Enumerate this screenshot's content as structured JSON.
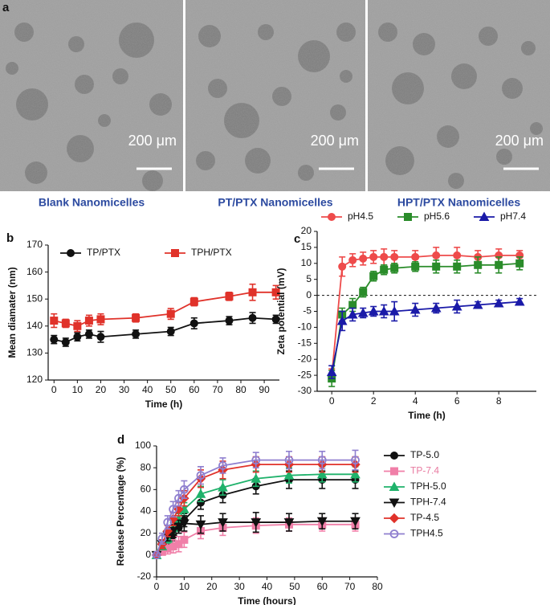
{
  "panel_labels": [
    "a",
    "b",
    "c",
    "d"
  ],
  "micrographs": [
    {
      "scale_label": "200 μm",
      "caption": "Blank Nanomicelles"
    },
    {
      "scale_label": "200 μm",
      "caption": "PT/PTX Nanomicelles"
    },
    {
      "scale_label": "200 μm",
      "caption": "HPT/PTX Nanomicelles"
    }
  ],
  "chart_data": [
    {
      "type": "line",
      "xlabel": "Time (h)",
      "ylabel": "Mean diamater (nm)",
      "legend": "upper left",
      "x": [
        0,
        5,
        10,
        15,
        20,
        35,
        50,
        60,
        75,
        85,
        95
      ],
      "xlim": [
        -2.5,
        96.5
      ],
      "xticks": [
        0,
        10,
        20,
        30,
        40,
        50,
        60,
        70,
        80,
        90
      ],
      "ylim": [
        120,
        170
      ],
      "yticks": [
        120,
        130,
        140,
        150,
        160,
        170
      ],
      "series": [
        {
          "name": "TP/PTX",
          "color": "#111111",
          "marker": "circle",
          "values": [
            135,
            134,
            136,
            137,
            136,
            137,
            138,
            141,
            142,
            143,
            142.5
          ],
          "errors": [
            1.5,
            1.5,
            1.5,
            1.5,
            2,
            1.5,
            1.5,
            2,
            1.5,
            2,
            1.5
          ]
        },
        {
          "name": "TPH/PTX",
          "color": "#e0322a",
          "marker": "square",
          "values": [
            142,
            141,
            140,
            142,
            142.5,
            143,
            144.5,
            149,
            151,
            152.5,
            152.5
          ],
          "errors": [
            2.5,
            1.5,
            2,
            2,
            2,
            1.5,
            2,
            1.5,
            1.5,
            3,
            2.5
          ]
        }
      ]
    },
    {
      "type": "line",
      "xlabel": "Time (h)",
      "ylabel": "Zeta potential (mV)",
      "legend": "top",
      "x": [
        0,
        0.5,
        1,
        1.5,
        2,
        2.5,
        3,
        4,
        5,
        6,
        7,
        8,
        9
      ],
      "xlim": [
        -0.7,
        9.8
      ],
      "xticks": [
        0,
        2,
        4,
        6,
        8
      ],
      "ylim": [
        -30,
        20
      ],
      "yticks": [
        -30,
        -25,
        -20,
        -15,
        -10,
        -5,
        0,
        5,
        10,
        15,
        20
      ],
      "hline": 0,
      "series": [
        {
          "name": "pH4.5",
          "color": "#ee4b4b",
          "marker": "circle",
          "values": [
            -25,
            9,
            11,
            11.5,
            12,
            12,
            12,
            12,
            12.5,
            12.5,
            12,
            12.5,
            12.5
          ],
          "errors": [
            2,
            3,
            2,
            2,
            2,
            2.5,
            2,
            2,
            2.5,
            2.5,
            2,
            2,
            1.5
          ]
        },
        {
          "name": "pH5.6",
          "color": "#2a8c2a",
          "marker": "square",
          "values": [
            -26,
            -6,
            -3,
            1,
            6,
            8,
            8.5,
            9,
            9,
            9,
            9.5,
            9.5,
            10
          ],
          "errors": [
            2.5,
            2,
            2,
            1.5,
            1.5,
            1.5,
            1.5,
            1.5,
            2,
            2,
            2.5,
            2.5,
            2
          ]
        },
        {
          "name": "pH7.4",
          "color": "#1a1aa8",
          "marker": "triangle",
          "values": [
            -24,
            -8,
            -6,
            -5.5,
            -5,
            -5,
            -5,
            -4.5,
            -4,
            -3.5,
            -3,
            -2.5,
            -2
          ],
          "errors": [
            2,
            3,
            2,
            1.5,
            1.5,
            2,
            3,
            2,
            1.5,
            2,
            1,
            1,
            1
          ]
        }
      ]
    },
    {
      "type": "line",
      "xlabel": "Time (hours)",
      "ylabel": "Release Percentage (%)",
      "legend": "right",
      "x": [
        0,
        2,
        4,
        6,
        8,
        10,
        16,
        24,
        36,
        48,
        60,
        72
      ],
      "xlim": [
        0,
        80
      ],
      "xticks": [
        0,
        10,
        20,
        30,
        40,
        50,
        60,
        70,
        80
      ],
      "ylim": [
        -20,
        100
      ],
      "yticks": [
        -20,
        0,
        20,
        40,
        60,
        80,
        100
      ],
      "series": [
        {
          "name": "TP-5.0",
          "color": "#111111",
          "marker": "circle",
          "values": [
            0,
            5,
            10,
            18,
            25,
            32,
            48,
            55,
            63,
            69,
            69,
            69
          ],
          "errors": [
            1,
            3,
            4,
            5,
            5,
            6,
            6,
            7,
            7,
            8,
            8,
            8
          ]
        },
        {
          "name": "TP-7.4",
          "color": "#f07fa8",
          "label_color": "#e87aa0",
          "marker": "square",
          "values": [
            0,
            3,
            6,
            8,
            10,
            14,
            22,
            25,
            27,
            28,
            28,
            28
          ],
          "errors": [
            1,
            3,
            5,
            6,
            7,
            7,
            7,
            7,
            7,
            6,
            6,
            6
          ]
        },
        {
          "name": "TPH-5.0",
          "color": "#1fb26b",
          "marker": "triangle",
          "values": [
            0,
            8,
            15,
            25,
            33,
            42,
            56,
            62,
            70,
            73,
            74,
            74
          ],
          "errors": [
            1,
            3,
            4,
            5,
            5,
            6,
            7,
            7,
            7,
            7,
            7,
            7
          ]
        },
        {
          "name": "TPH-7.4",
          "color": "#111111",
          "marker": "triangle-down",
          "values": [
            0,
            10,
            18,
            22,
            26,
            29,
            28,
            30,
            30,
            30,
            31,
            31
          ],
          "errors": [
            1,
            4,
            5,
            6,
            6,
            7,
            8,
            8,
            9,
            8,
            7,
            7
          ]
        },
        {
          "name": "TP-4.5",
          "color": "#e0322a",
          "marker": "diamond",
          "values": [
            0,
            10,
            22,
            33,
            42,
            52,
            70,
            78,
            83,
            83,
            83,
            83
          ],
          "errors": [
            1,
            4,
            5,
            6,
            6,
            7,
            8,
            8,
            7,
            7,
            7,
            7
          ]
        },
        {
          "name": "TPH4.5",
          "color": "#8f7fcf",
          "marker": "open-circle",
          "values": [
            0,
            15,
            30,
            42,
            52,
            60,
            73,
            82,
            87,
            87,
            87,
            87
          ],
          "errors": [
            1,
            5,
            6,
            7,
            7,
            8,
            8,
            7,
            7,
            8,
            8,
            9
          ]
        }
      ]
    }
  ]
}
